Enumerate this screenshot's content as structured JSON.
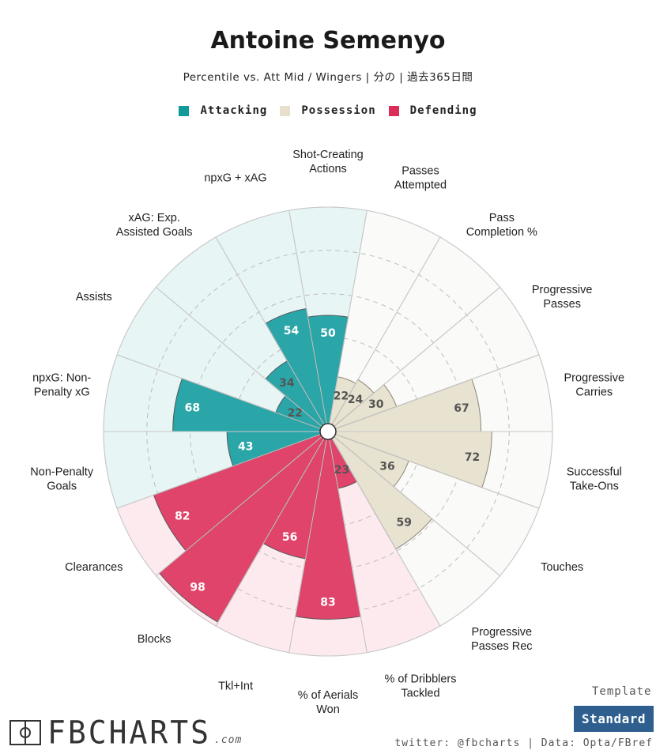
{
  "header": {
    "title": "Antoine Semenyo",
    "subtitle": "Percentile vs. Att Mid / Wingers | 分の | 過去365日間"
  },
  "legend": [
    {
      "label": "Attacking",
      "color": "#129a9a"
    },
    {
      "label": "Possession",
      "color": "#e8e0cc"
    },
    {
      "label": "Defending",
      "color": "#dc2c58"
    }
  ],
  "colors": {
    "attacking_fill": "#2aa6a8",
    "attacking_bg": "#e8f5f5",
    "possession_fill": "#e8e2d0",
    "possession_bg": "#fafaf8",
    "defending_fill": "#e0446a",
    "defending_bg": "#fdeaee"
  },
  "chart_data": {
    "type": "polar-bar",
    "rlim": [
      0,
      100
    ],
    "categories": [
      {
        "label": "Shot-Creating\nActions",
        "value": 50,
        "group": "attacking"
      },
      {
        "label": "Passes\nAttempted",
        "value": 22,
        "group": "possession"
      },
      {
        "label": "Pass\nCompletion %",
        "value": 24,
        "group": "possession"
      },
      {
        "label": "Progressive\nPasses",
        "value": 30,
        "group": "possession"
      },
      {
        "label": "Progressive\nCarries",
        "value": 67,
        "group": "possession"
      },
      {
        "label": "Successful\nTake-Ons",
        "value": 72,
        "group": "possession"
      },
      {
        "label": "Touches",
        "value": 36,
        "group": "possession"
      },
      {
        "label": "Progressive\nPasses Rec",
        "value": 59,
        "group": "possession"
      },
      {
        "label": "% of Dribblers\nTackled",
        "value": 23,
        "group": "defending"
      },
      {
        "label": "% of Aerials\nWon",
        "value": 83,
        "group": "defending"
      },
      {
        "label": "Tkl+Int",
        "value": 56,
        "group": "defending"
      },
      {
        "label": "Blocks",
        "value": 98,
        "group": "defending"
      },
      {
        "label": "Clearances",
        "value": 82,
        "group": "defending"
      },
      {
        "label": "Non-Penalty\nGoals",
        "value": 43,
        "group": "attacking"
      },
      {
        "label": "npxG: Non-\nPenalty xG",
        "value": 68,
        "group": "attacking"
      },
      {
        "label": "Assists",
        "value": 22,
        "group": "attacking"
      },
      {
        "label": "xAG: Exp.\nAssisted Goals",
        "value": 34,
        "group": "attacking"
      },
      {
        "label": "npxG + xAG",
        "value": 54,
        "group": "attacking"
      }
    ]
  },
  "footer": {
    "template_label": "Template",
    "template_value": "Standard",
    "credit": "twitter: @fbcharts | Data: Opta/FBref",
    "logo_text": "FBCHARTS",
    "logo_suffix": ".com"
  }
}
